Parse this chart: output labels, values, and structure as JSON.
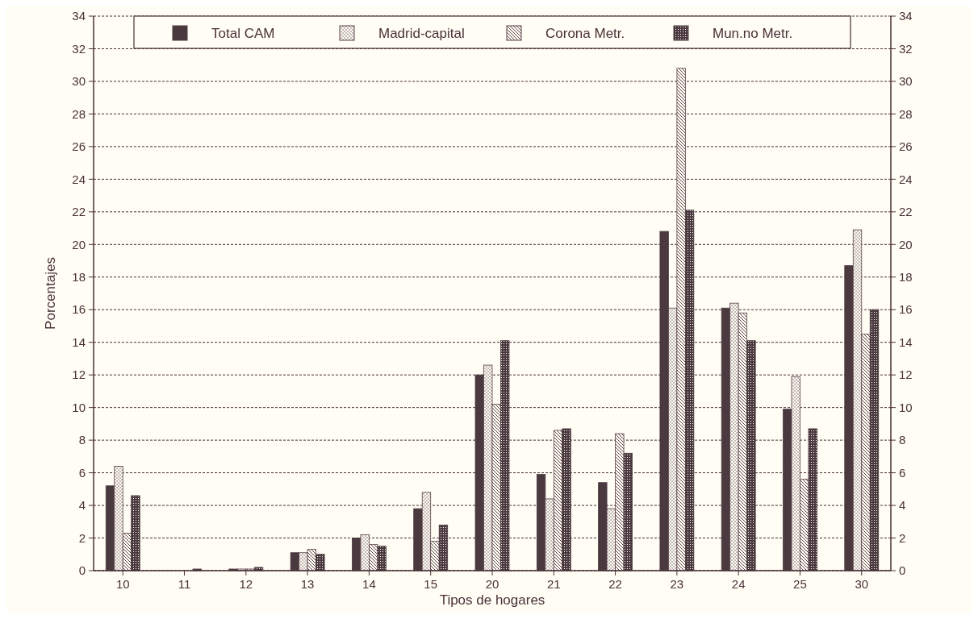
{
  "chart_data": {
    "type": "bar",
    "xlabel": "Tipos de hogares",
    "ylabel": "Porcentajes",
    "categories": [
      "10",
      "11",
      "12",
      "13",
      "14",
      "15",
      "20",
      "21",
      "22",
      "23",
      "24",
      "25",
      "30"
    ],
    "series": [
      {
        "name": "Total CAM",
        "color": "#4a3a40",
        "values": [
          5.2,
          null,
          0.1,
          1.1,
          2.0,
          3.8,
          12.0,
          5.9,
          5.4,
          20.8,
          16.1,
          9.9,
          18.7
        ]
      },
      {
        "name": "Madrid-capital",
        "color": "#5a4048",
        "values": [
          6.4,
          null,
          0.1,
          1.1,
          2.2,
          4.8,
          12.6,
          4.4,
          3.8,
          16.1,
          16.4,
          11.9,
          20.9
        ]
      },
      {
        "name": "Corona Metr.",
        "color": "#5a4048",
        "values": [
          2.3,
          null,
          0.1,
          1.3,
          1.6,
          1.8,
          10.2,
          8.6,
          8.4,
          30.8,
          15.8,
          5.6,
          14.5
        ]
      },
      {
        "name": "Mun.no Metr.",
        "color": "#4a3a40",
        "values": [
          4.6,
          0.1,
          0.2,
          1.0,
          1.5,
          2.8,
          14.1,
          8.7,
          7.2,
          22.1,
          14.1,
          8.7,
          16.0
        ]
      }
    ],
    "ylim": [
      0,
      34
    ],
    "yticks": [
      0,
      2,
      4,
      6,
      8,
      10,
      12,
      14,
      16,
      18,
      20,
      22,
      24,
      26,
      28,
      30,
      32,
      34
    ],
    "y2lim": [
      0,
      34
    ],
    "y2ticks": [
      0,
      2,
      4,
      6,
      8,
      10,
      12,
      14,
      16,
      18,
      20,
      22,
      24,
      26,
      28,
      30,
      32,
      34
    ],
    "grid": "y",
    "legend": "top"
  }
}
